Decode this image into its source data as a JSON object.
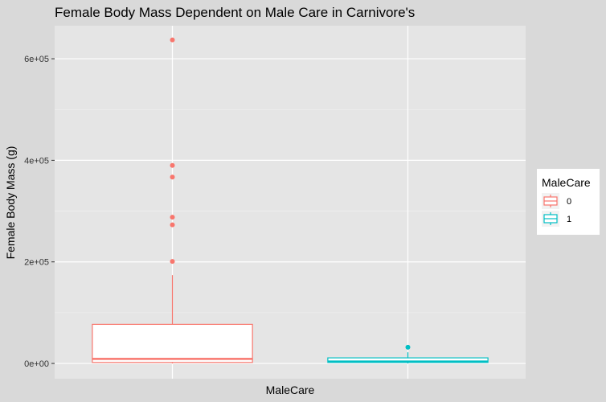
{
  "chart_data": {
    "type": "boxplot",
    "title": "Female Body Mass Dependent on Male Care in Carnivore's",
    "xlabel": "MaleCare",
    "ylabel": "Female Body Mass (g)",
    "ylim": [
      -30000,
      665000
    ],
    "yticks": [
      {
        "value": 0,
        "label": "0e+00"
      },
      {
        "value": 200000,
        "label": "2e+05"
      },
      {
        "value": 400000,
        "label": "4e+05"
      },
      {
        "value": 600000,
        "label": "6e+05"
      }
    ],
    "grid": true,
    "legend": {
      "title": "MaleCare",
      "position": "right",
      "entries": [
        "0",
        "1"
      ]
    },
    "series": [
      {
        "name": "0",
        "color": "#F8766D",
        "q1": 2000,
        "median": 9000,
        "q3": 77000,
        "whisker_low": 0,
        "whisker_high": 174000,
        "outliers": [
          201000,
          273000,
          288000,
          367000,
          390000,
          637000
        ]
      },
      {
        "name": "1",
        "color": "#00BFC4",
        "q1": 2000,
        "median": 4000,
        "q3": 11000,
        "whisker_low": 0,
        "whisker_high": 22000,
        "outliers": [
          32000
        ]
      }
    ]
  }
}
